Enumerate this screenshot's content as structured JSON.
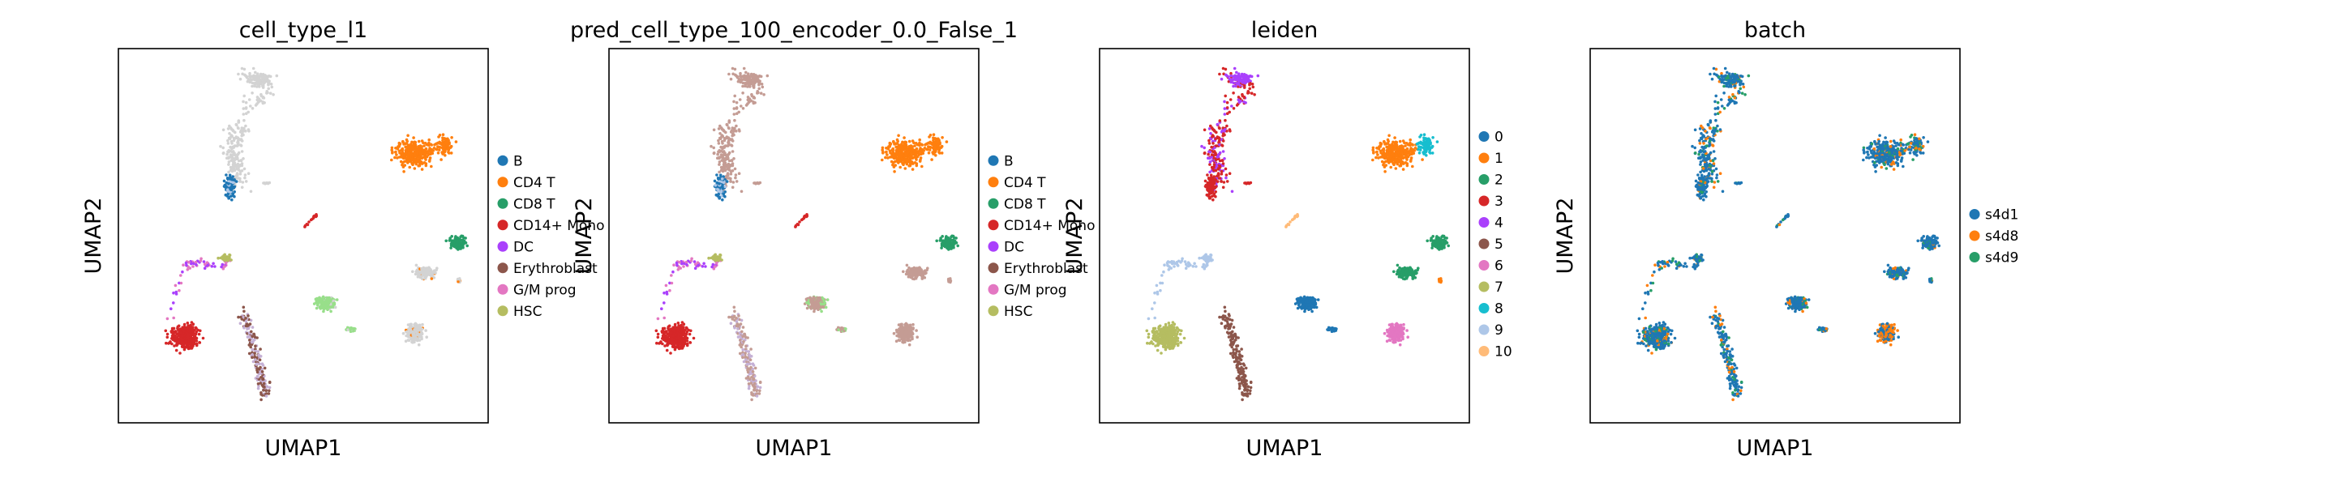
{
  "chart_data": [
    {
      "type": "scatter",
      "title": "cell_type_l1",
      "xlabel": "UMAP1",
      "ylabel": "UMAP2",
      "legend_title": "",
      "legend_placement": "right",
      "grid": false,
      "coloring": "cell_type",
      "categories": [
        {
          "name": "B",
          "color": "#1f77b4"
        },
        {
          "name": "CD4 T",
          "color": "#ff7f0e"
        },
        {
          "name": "CD8 T",
          "color": "#279e68"
        },
        {
          "name": "CD14+ Mono",
          "color": "#d62728"
        },
        {
          "name": "DC",
          "color": "#aa40fc"
        },
        {
          "name": "Erythroblast",
          "color": "#8c564b"
        },
        {
          "name": "G/M prog",
          "color": "#e377c2"
        },
        {
          "name": "HSC",
          "color": "#b5bd61"
        }
      ]
    },
    {
      "type": "scatter",
      "title": "pred_cell_type_100_encoder_0.0_False_1",
      "xlabel": "UMAP1",
      "ylabel": "UMAP2",
      "legend_title": "",
      "legend_placement": "right",
      "grid": false,
      "coloring": "pred",
      "categories": [
        {
          "name": "B",
          "color": "#1f77b4"
        },
        {
          "name": "CD4 T",
          "color": "#ff7f0e"
        },
        {
          "name": "CD8 T",
          "color": "#279e68"
        },
        {
          "name": "CD14+ Mono",
          "color": "#d62728"
        },
        {
          "name": "DC",
          "color": "#aa40fc"
        },
        {
          "name": "Erythroblast",
          "color": "#8c564b"
        },
        {
          "name": "G/M prog",
          "color": "#e377c2"
        },
        {
          "name": "HSC",
          "color": "#b5bd61"
        }
      ]
    },
    {
      "type": "scatter",
      "title": "leiden",
      "xlabel": "UMAP1",
      "ylabel": "UMAP2",
      "legend_title": "",
      "legend_placement": "right",
      "grid": false,
      "coloring": "leiden",
      "categories": [
        {
          "name": "0",
          "color": "#1f77b4"
        },
        {
          "name": "1",
          "color": "#ff7f0e"
        },
        {
          "name": "2",
          "color": "#279e68"
        },
        {
          "name": "3",
          "color": "#d62728"
        },
        {
          "name": "4",
          "color": "#aa40fc"
        },
        {
          "name": "5",
          "color": "#8c564b"
        },
        {
          "name": "6",
          "color": "#e377c2"
        },
        {
          "name": "7",
          "color": "#b5bd61"
        },
        {
          "name": "8",
          "color": "#17becf"
        },
        {
          "name": "9",
          "color": "#aec7e8"
        },
        {
          "name": "10",
          "color": "#ffbb78"
        }
      ]
    },
    {
      "type": "scatter",
      "title": "batch",
      "xlabel": "UMAP1",
      "ylabel": "UMAP2",
      "legend_title": "",
      "legend_placement": "right",
      "grid": false,
      "coloring": "batch",
      "categories": [
        {
          "name": "s4d1",
          "color": "#1f77b4"
        },
        {
          "name": "s4d8",
          "color": "#ff7f0e"
        },
        {
          "name": "s4d9",
          "color": "#279e68"
        }
      ]
    }
  ],
  "unlabeled_color": "#d3d3d3"
}
